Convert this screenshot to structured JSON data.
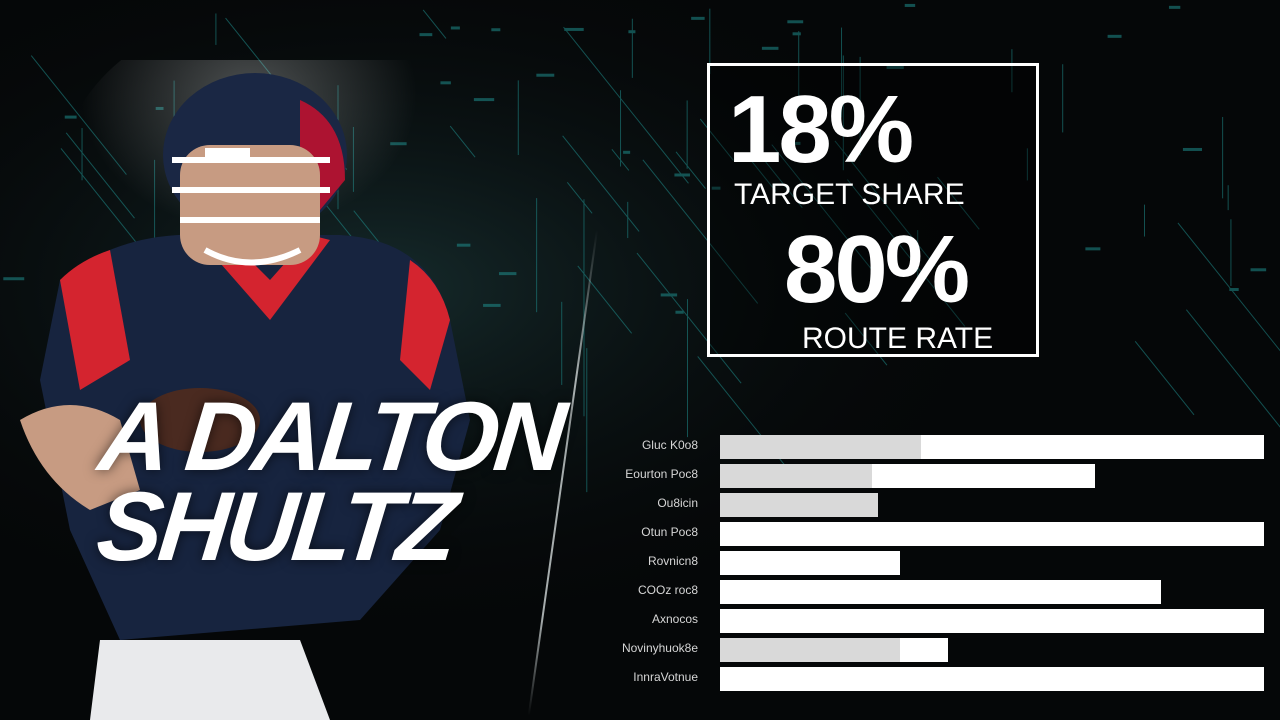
{
  "player": {
    "first_name": "A DALTON",
    "last_name": "SHULTZ"
  },
  "stats": [
    {
      "value": "18%",
      "label": "TARGET SHARE"
    },
    {
      "value": "80%",
      "label": "ROUTE RATE"
    }
  ],
  "bars": [
    {
      "label": "Gluc K0o8",
      "fill": 1.0,
      "shade": 0.37
    },
    {
      "label": "Eourton Poc8",
      "fill": 0.69,
      "shade": 0.28
    },
    {
      "label": "Ou8icin",
      "fill": 0.29,
      "shade": 0.29
    },
    {
      "label": "Otun Poc8",
      "fill": 1.0,
      "shade": 0.0
    },
    {
      "label": "Rovnicn8",
      "fill": 0.33,
      "shade": 0.0
    },
    {
      "label": "COOz roc8",
      "fill": 0.81,
      "shade": 0.0
    },
    {
      "label": "Axnocos",
      "fill": 1.0,
      "shade": 0.0
    },
    {
      "label": "Novinyhuok8e",
      "fill": 0.42,
      "shade": 0.33
    },
    {
      "label": "InnraVotnue",
      "fill": 1.0,
      "shade": 0.0
    }
  ],
  "colors": {
    "background": "#050708",
    "grid": "#1f8d8c",
    "jersey_navy": "#17243f",
    "jersey_red": "#d4242f"
  }
}
